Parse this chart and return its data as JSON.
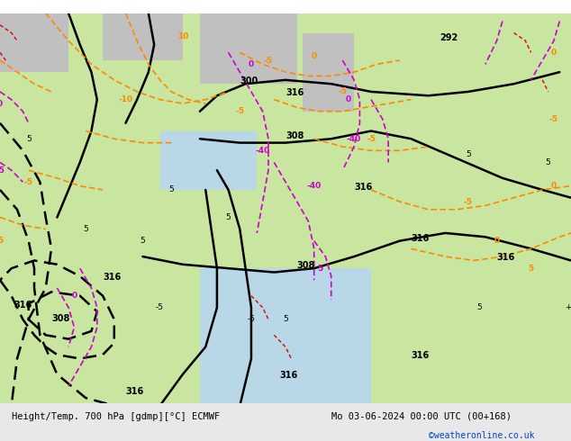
{
  "title_left": "Height/Temp. 700 hPa [gdmp][°C] ECMWF",
  "title_right": "Mo 03-06-2024 00:00 UTC (00+168)",
  "credit": "©weatheronline.co.uk",
  "bg_color_land": "#c8e6a0",
  "bg_color_sea": "#d0e8f0",
  "bg_color_gray": "#c8c8c8",
  "footer_bg": "#e8e8e8",
  "fig_width": 6.34,
  "fig_height": 4.9,
  "dpi": 100,
  "gray_area_color": "#c0c0c0",
  "contour_black_color": "#000000",
  "contour_orange_color": "#ff8800",
  "contour_magenta_color": "#cc00cc",
  "contour_red_color": "#dd0000",
  "label_fontsize": 7,
  "footer_fontsize": 7.5,
  "credit_fontsize": 7,
  "credit_color": "#0044cc"
}
